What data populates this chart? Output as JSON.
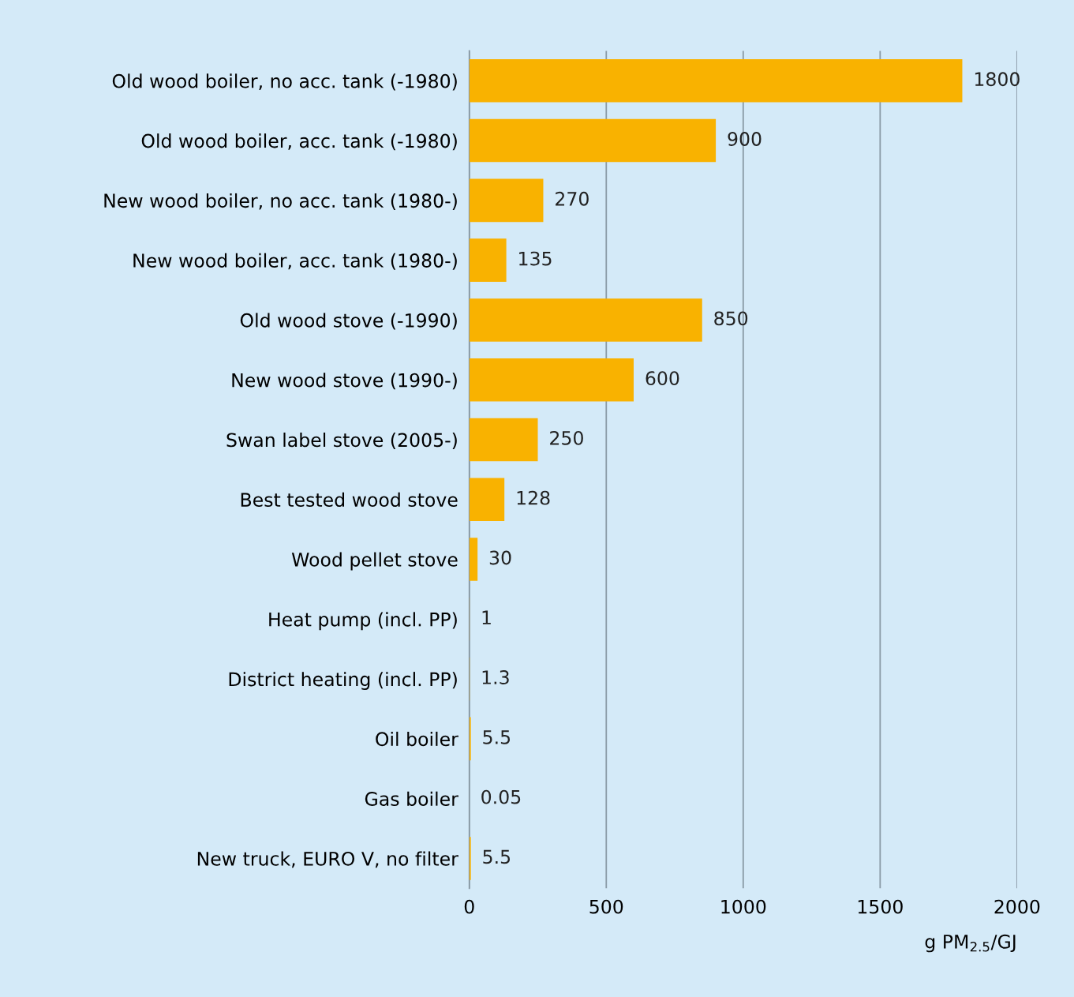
{
  "chart_data": {
    "type": "bar",
    "orientation": "horizontal",
    "categories": [
      "Old wood boiler, no acc. tank (-1980)",
      "Old wood boiler, acc. tank (-1980)",
      "New wood boiler, no acc. tank (1980-)",
      "New wood boiler, acc. tank (1980-)",
      "Old wood stove (-1990)",
      "New wood stove (1990-)",
      "Swan label stove (2005-)",
      "Best tested wood stove",
      "Wood pellet stove",
      "Heat pump (incl. PP)",
      "District heating (incl. PP)",
      "Oil boiler",
      "Gas boiler",
      "New truck, EURO V, no filter"
    ],
    "values": [
      1800,
      900,
      270,
      135,
      850,
      600,
      250,
      128,
      30,
      1,
      1.3,
      5.5,
      0.05,
      5.5
    ],
    "value_labels": [
      "1800",
      "900",
      "270",
      "135",
      "850",
      "600",
      "250",
      "128",
      "30",
      "1",
      "1.3",
      "5.5",
      "0.05",
      "5.5"
    ],
    "color": "#f9b200",
    "xlabel": "g PM$_{2.5}$/GJ",
    "xlim": [
      0,
      2000
    ],
    "xticks": [
      0,
      500,
      1000,
      1500,
      2000
    ],
    "grid": "x",
    "legend": false
  }
}
